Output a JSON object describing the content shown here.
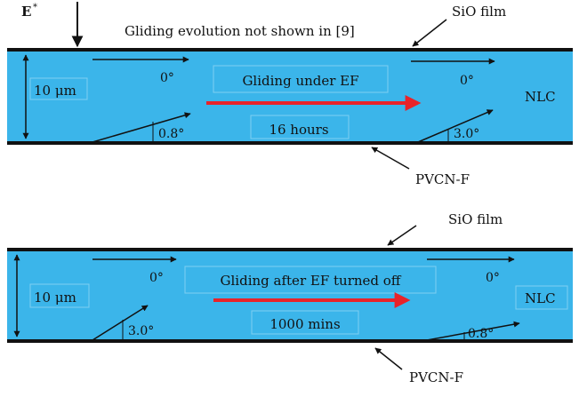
{
  "colors": {
    "cell_fill": "#3bb5ea",
    "wall": "#111111",
    "arrow": "#111111",
    "ef_arrow": "#e8232a"
  },
  "top_panel": {
    "field_label": "E",
    "field_label_sup": "*",
    "top_note": "Gliding evolution not shown in [9]",
    "top_film": "SiO film",
    "thickness_label": "10 μm",
    "center_title": "Gliding under EF",
    "center_time": "16 hours",
    "angle_top_left": "0°",
    "angle_top_right": "0°",
    "angle_bottom_left": "0.8°",
    "angle_bottom_right": "3.0°",
    "medium_label": "NLC",
    "bottom_film": "PVCN-F"
  },
  "bottom_panel": {
    "top_film": "SiO film",
    "thickness_label": "10 μm",
    "center_title": "Gliding after EF turned off",
    "center_time": "1000 mins",
    "angle_top_left": "0°",
    "angle_top_right": "0°",
    "angle_bottom_left": "3.0°",
    "angle_bottom_right": "0.8°",
    "medium_label": "NLC",
    "bottom_film": "PVCN-F"
  }
}
